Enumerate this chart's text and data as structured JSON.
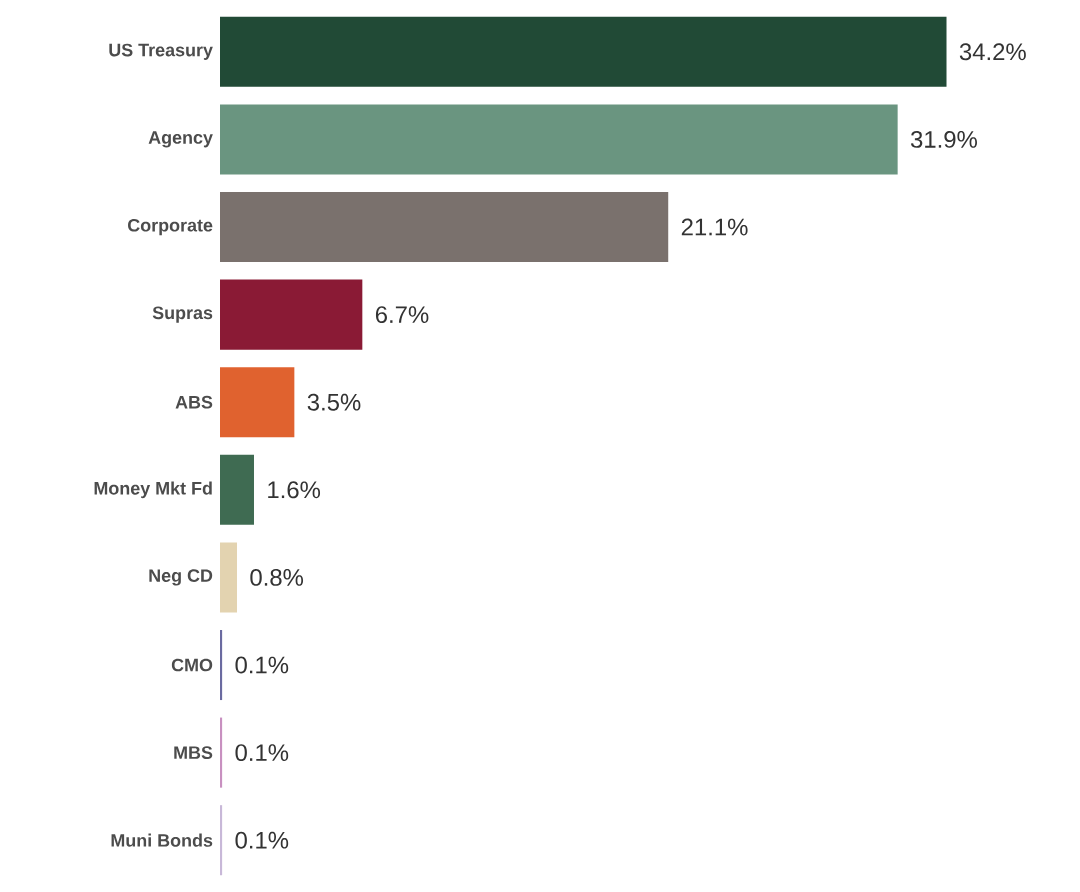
{
  "chart_data": {
    "type": "bar",
    "orientation": "horizontal",
    "categories": [
      "US Treasury",
      "Agency",
      "Corporate",
      "Supras",
      "ABS",
      "Money Mkt Fd",
      "Neg CD",
      "CMO",
      "MBS",
      "Muni Bonds"
    ],
    "values": [
      34.2,
      31.9,
      21.1,
      6.7,
      3.5,
      1.6,
      0.8,
      0.1,
      0.1,
      0.1
    ],
    "colors": [
      "#214a36",
      "#6a9580",
      "#7a716d",
      "#8a1a35",
      "#e0622f",
      "#3f6b52",
      "#e3d3b0",
      "#6a6aa0",
      "#c890c0",
      "#c8b8d8"
    ],
    "value_labels": [
      "34.2%",
      "31.9%",
      "21.1%",
      "6.7%",
      "3.5%",
      "1.6%",
      "0.8%",
      "0.1%",
      "0.1%",
      "0.1%"
    ]
  }
}
